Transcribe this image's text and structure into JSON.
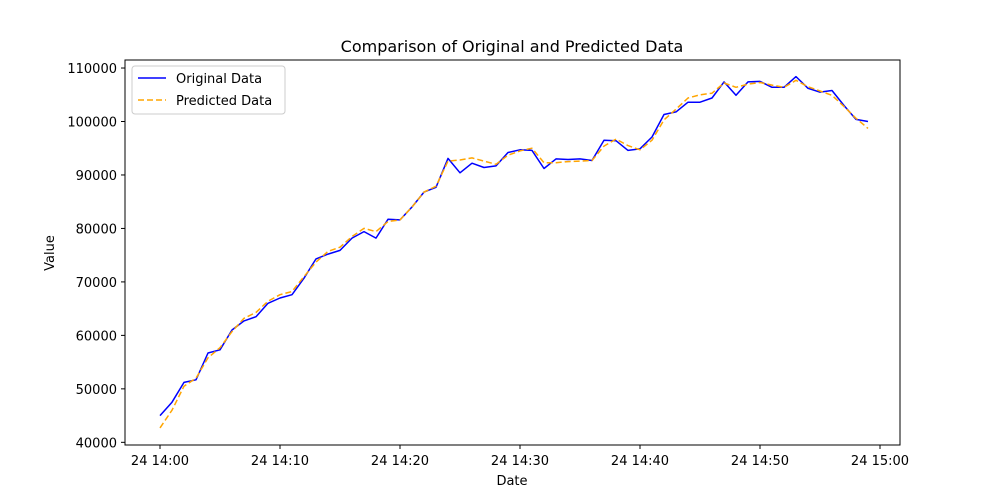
{
  "chart_data": {
    "type": "line",
    "title": "Comparison of Original and Predicted Data",
    "xlabel": "Date",
    "ylabel": "Value",
    "x_axis": {
      "type": "datetime",
      "range": [
        "14:00",
        "15:00"
      ],
      "ticks": [
        "14:00",
        "14:10",
        "14:20",
        "14:30",
        "14:40",
        "14:50",
        "15:00"
      ],
      "tick_labels": [
        "24 14:00",
        "24 14:10",
        "24 14:20",
        "24 14:30",
        "24 14:40",
        "24 14:50",
        "24 15:00"
      ]
    },
    "y_axis": {
      "range": [
        39500,
        111500
      ],
      "ticks": [
        40000,
        50000,
        60000,
        70000,
        80000,
        90000,
        100000,
        110000
      ],
      "tick_labels": [
        "40000",
        "50000",
        "60000",
        "70000",
        "80000",
        "90000",
        "100000",
        "110000"
      ]
    },
    "grid": false,
    "legend_position": "top-left",
    "x": [
      "14:00",
      "14:01",
      "14:02",
      "14:03",
      "14:04",
      "14:05",
      "14:06",
      "14:07",
      "14:08",
      "14:09",
      "14:10",
      "14:11",
      "14:12",
      "14:13",
      "14:14",
      "14:15",
      "14:16",
      "14:17",
      "14:18",
      "14:19",
      "14:20",
      "14:21",
      "14:22",
      "14:23",
      "14:24",
      "14:25",
      "14:26",
      "14:27",
      "14:28",
      "14:29",
      "14:30",
      "14:31",
      "14:32",
      "14:33",
      "14:34",
      "14:35",
      "14:36",
      "14:37",
      "14:38",
      "14:39",
      "14:40",
      "14:41",
      "14:42",
      "14:43",
      "14:44",
      "14:45",
      "14:46",
      "14:47",
      "14:48",
      "14:49",
      "14:50",
      "14:51",
      "14:52",
      "14:53",
      "14:54",
      "14:55",
      "14:56",
      "14:57",
      "14:58",
      "14:59"
    ],
    "series": [
      {
        "name": "Original Data",
        "color": "#0000ff",
        "style": "solid",
        "values": [
          45000,
          47500,
          51200,
          51700,
          56700,
          57300,
          61000,
          62700,
          63500,
          66000,
          67000,
          67600,
          70700,
          74300,
          75200,
          75900,
          78200,
          79400,
          78200,
          81700,
          81600,
          84000,
          86800,
          87700,
          93100,
          90400,
          92200,
          91400,
          91700,
          94200,
          94700,
          94600,
          91200,
          93000,
          92900,
          93000,
          92700,
          96500,
          96400,
          94600,
          94900,
          97100,
          101300,
          101800,
          103600,
          103600,
          104400,
          107400,
          104900,
          107400,
          107500,
          106400,
          106400,
          108400,
          106200,
          105500,
          105800,
          103000,
          100400,
          100000
        ]
      },
      {
        "name": "Predicted Data",
        "color": "#ffa500",
        "style": "dashed",
        "values": [
          42700,
          46000,
          50500,
          52000,
          55800,
          57700,
          60700,
          63200,
          64300,
          66400,
          67600,
          68200,
          71000,
          73700,
          75700,
          76500,
          78500,
          80000,
          79400,
          81300,
          81600,
          84000,
          86800,
          87900,
          92600,
          92800,
          93200,
          92600,
          92000,
          93700,
          94500,
          95000,
          92300,
          92300,
          92500,
          92600,
          92700,
          95400,
          96700,
          95500,
          94700,
          96500,
          100300,
          102300,
          104400,
          105000,
          105300,
          107200,
          106400,
          107000,
          107300,
          106800,
          106400,
          107700,
          106500,
          105700,
          104900,
          102800,
          100600,
          98700
        ]
      }
    ]
  }
}
